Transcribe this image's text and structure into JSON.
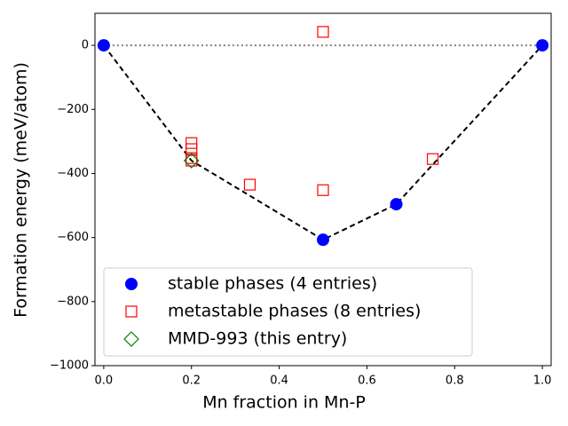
{
  "chart_data": {
    "type": "scatter",
    "xlabel": "Mn fraction in Mn-P",
    "ylabel": "Formation energy (meV/atom)",
    "xlim": [
      -0.02,
      1.02
    ],
    "ylim": [
      -1000,
      100
    ],
    "xticks": [
      {
        "value": 0,
        "label": "0.0"
      },
      {
        "value": 0.2,
        "label": "0.2"
      },
      {
        "value": 0.4,
        "label": "0.4"
      },
      {
        "value": 0.6,
        "label": "0.6"
      },
      {
        "value": 0.8,
        "label": "0.8"
      },
      {
        "value": 1,
        "label": "1.0"
      }
    ],
    "yticks": [
      {
        "value": -1000,
        "label": "−1000"
      },
      {
        "value": -800,
        "label": "−800"
      },
      {
        "value": -600,
        "label": "−600"
      },
      {
        "value": -400,
        "label": "−400"
      },
      {
        "value": -200,
        "label": "−200"
      },
      0
    ],
    "hline": {
      "value": 0,
      "color": "#808080"
    },
    "hull": {
      "color": "#000000",
      "x": [
        0,
        0.2,
        0.5,
        0.667,
        1
      ],
      "values": [
        0,
        -360,
        -607,
        -496,
        0
      ]
    },
    "legend": "lower left",
    "series": [
      {
        "name": "stable phases (4 entries)",
        "color": "#0000ff",
        "marker": "circle",
        "x": [
          0,
          0.5,
          0.667,
          1
        ],
        "values": [
          0,
          -607,
          -496,
          0
        ]
      },
      {
        "name": "metastable phases (8 entries)",
        "color": "#ff0000",
        "marker": "square",
        "x": [
          0.2,
          0.2,
          0.2,
          0.2,
          0.333,
          0.5,
          0.5,
          0.75
        ],
        "values": [
          -305,
          -324,
          -352,
          -360,
          -435,
          42,
          -452,
          -355
        ]
      },
      {
        "name": "MMD-993 (this entry)",
        "color": "#008000",
        "marker": "diamond",
        "x": [
          0.2
        ],
        "values": [
          -360
        ]
      }
    ]
  }
}
